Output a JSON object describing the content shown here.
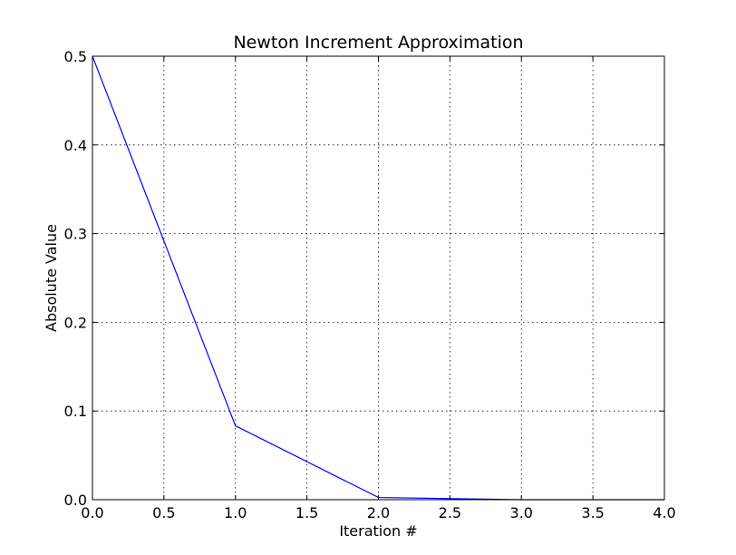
{
  "chart_data": {
    "type": "line",
    "title": "Newton Increment Approximation",
    "xlabel": "Iteration #",
    "ylabel": "Absolute Value",
    "xlim": [
      0,
      4
    ],
    "ylim": [
      0,
      0.5
    ],
    "grid": true,
    "xticks": [
      0,
      0.5,
      1,
      1.5,
      2,
      2.5,
      3,
      3.5,
      4
    ],
    "xtick_labels": [
      "0.0",
      "0.5",
      "1.0",
      "1.5",
      "2.0",
      "2.5",
      "3.0",
      "3.5",
      "4.0"
    ],
    "yticks": [
      0,
      0.1,
      0.2,
      0.3,
      0.4,
      0.5
    ],
    "ytick_labels": [
      "0.0",
      "0.1",
      "0.2",
      "0.3",
      "0.4",
      "0.5"
    ],
    "series": [
      {
        "color": "#0000ff",
        "x": [
          0,
          1,
          2,
          3,
          4
        ],
        "y": [
          0.5,
          0.0833,
          0.0025,
          0.0,
          0.0
        ]
      }
    ]
  }
}
